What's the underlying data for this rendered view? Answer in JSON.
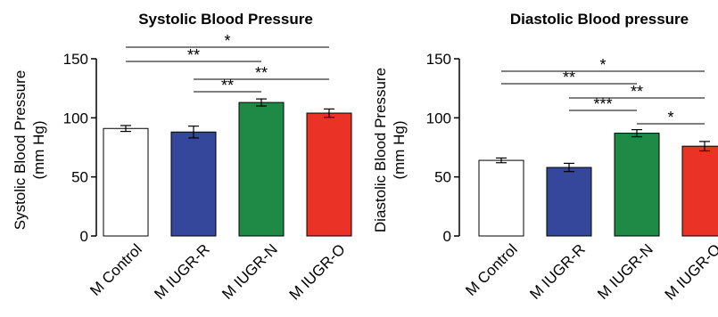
{
  "chart_data": [
    {
      "type": "bar",
      "title": "Systolic Blood Pressure",
      "ylabel": [
        "Systolic Blood Pressure",
        "(mm Hg)"
      ],
      "ylim": [
        0,
        150
      ],
      "yticks": [
        0,
        50,
        100,
        150
      ],
      "categories": [
        "M Control",
        "M IUGR-R",
        "M IUGR-N",
        "M IUGR-O"
      ],
      "values": [
        91,
        88,
        113,
        104
      ],
      "errors": [
        2.5,
        5,
        3,
        3.5
      ],
      "colors": [
        "#ffffff",
        "#34479b",
        "#1e8a45",
        "#ea3326"
      ],
      "significance": [
        {
          "from": 0,
          "to": 3,
          "label": "*"
        },
        {
          "from": 0,
          "to": 2,
          "label": "**"
        },
        {
          "from": 1,
          "to": 3,
          "label": "**"
        },
        {
          "from": 1,
          "to": 2,
          "label": "**"
        }
      ]
    },
    {
      "type": "bar",
      "title": "Diastolic Blood pressure",
      "ylabel": [
        "Diastolic Blood Pressure",
        "(mm Hg)"
      ],
      "ylim": [
        0,
        150
      ],
      "yticks": [
        0,
        50,
        100,
        150
      ],
      "categories": [
        "M Control",
        "M IUGR-R",
        "M IUGR-N",
        "M IUGR-O"
      ],
      "values": [
        64,
        58,
        87,
        76
      ],
      "errors": [
        2,
        3.5,
        3,
        4
      ],
      "colors": [
        "#ffffff",
        "#34479b",
        "#1e8a45",
        "#ea3326"
      ],
      "significance": [
        {
          "from": 0,
          "to": 3,
          "label": "*"
        },
        {
          "from": 0,
          "to": 2,
          "label": "**"
        },
        {
          "from": 1,
          "to": 3,
          "label": "**"
        },
        {
          "from": 1,
          "to": 2,
          "label": "***"
        },
        {
          "from": 2,
          "to": 3,
          "label": "*"
        }
      ]
    }
  ]
}
